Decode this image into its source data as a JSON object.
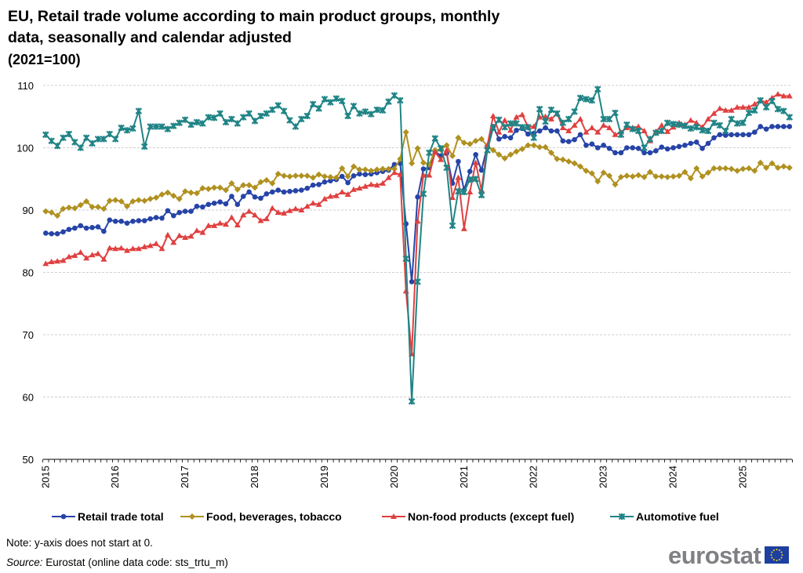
{
  "chart_data": {
    "type": "line",
    "title": "EU, Retail trade volume according to main product groups, monthly data, seasonally and calendar adjusted",
    "title_lines": [
      "EU, Retail trade volume according to main product groups, monthly",
      "data, seasonally and calendar adjusted"
    ],
    "subtitle": "(2021=100)",
    "xlabel": "",
    "ylabel": "",
    "x_start": "2015-01",
    "x_end": "2025-09",
    "x_frequency": "monthly",
    "x_tick_labels": [
      "2015",
      "2016",
      "2017",
      "2018",
      "2019",
      "2020",
      "2021",
      "2022",
      "2023",
      "2024",
      "2025"
    ],
    "ylim": [
      50,
      110
    ],
    "y_ticks": [
      50,
      60,
      70,
      80,
      90,
      100,
      110
    ],
    "grid": "horizontal dashed",
    "legend_placement": "bottom",
    "series": [
      {
        "name": "Retail trade total",
        "color": "#2644A7",
        "marker": "circle",
        "values": [
          86.3,
          86.2,
          86.2,
          86.5,
          86.9,
          87.1,
          87.5,
          87.1,
          87.2,
          87.3,
          86.6,
          88.4,
          88.2,
          88.2,
          87.9,
          88.2,
          88.3,
          88.3,
          88.6,
          88.8,
          88.7,
          89.9,
          89.1,
          89.6,
          89.8,
          89.8,
          90.6,
          90.5,
          90.9,
          91.1,
          91.3,
          91.0,
          92.2,
          90.9,
          92.2,
          92.9,
          92.1,
          91.9,
          92.6,
          92.9,
          93.2,
          92.9,
          93.0,
          93.1,
          93.2,
          93.5,
          94.0,
          94.1,
          94.5,
          94.7,
          94.9,
          95.4,
          94.4,
          95.5,
          95.8,
          95.7,
          95.8,
          96.0,
          96.2,
          96.4,
          97.3,
          97.5,
          87.8,
          78.5,
          92.1,
          96.6,
          96.8,
          99.4,
          98.7,
          99.1,
          94.3,
          97.8,
          93.2,
          96.2,
          98.9,
          96.4,
          100.3,
          103.4,
          101.4,
          101.8,
          101.6,
          102.8,
          103.1,
          102.2,
          102.3,
          102.7,
          103.2,
          102.7,
          102.7,
          101.1,
          101.0,
          101.3,
          102.1,
          100.4,
          100.6,
          100.0,
          100.4,
          99.9,
          99.2,
          99.2,
          100.0,
          100.0,
          99.9,
          99.2,
          99.2,
          99.5,
          100.1,
          99.8,
          100.0,
          100.2,
          100.4,
          100.7,
          100.9,
          99.9,
          100.7,
          101.6,
          102.1,
          102.0,
          102.1,
          102.1,
          102.1,
          102.1,
          102.5,
          103.4,
          103.0,
          103.4,
          103.4,
          103.4,
          103.4
        ]
      },
      {
        "name": "Food, beverages, tobacco",
        "color": "#B09120",
        "marker": "diamond",
        "values": [
          89.8,
          89.6,
          89.1,
          90.2,
          90.4,
          90.3,
          90.8,
          91.4,
          90.5,
          90.5,
          90.2,
          91.5,
          91.6,
          91.4,
          90.6,
          91.4,
          91.6,
          91.5,
          91.8,
          92.0,
          92.5,
          92.8,
          92.3,
          91.8,
          93.0,
          92.8,
          92.7,
          93.5,
          93.4,
          93.6,
          93.6,
          93.2,
          94.3,
          93.3,
          94.0,
          94.0,
          93.6,
          94.5,
          94.8,
          94.3,
          95.8,
          95.5,
          95.4,
          95.5,
          95.5,
          95.5,
          95.2,
          95.7,
          95.4,
          95.3,
          95.2,
          96.7,
          95.4,
          97.0,
          96.5,
          96.5,
          96.3,
          96.5,
          96.6,
          96.6,
          96.6,
          98.2,
          102.5,
          97.5,
          99.9,
          97.6,
          97.3,
          99.6,
          99.7,
          100.4,
          98.7,
          101.6,
          100.8,
          100.6,
          101.1,
          101.4,
          100.3,
          99.6,
          98.9,
          98.3,
          98.9,
          99.4,
          99.8,
          100.4,
          100.4,
          100.1,
          100.1,
          99.2,
          98.2,
          98.1,
          97.8,
          97.5,
          97.0,
          96.3,
          95.9,
          94.6,
          96.0,
          95.5,
          94.1,
          95.3,
          95.5,
          95.4,
          95.6,
          95.3,
          96.1,
          95.4,
          95.4,
          95.3,
          95.4,
          95.5,
          96.1,
          95.1,
          96.7,
          95.4,
          96.0,
          96.7,
          96.7,
          96.7,
          96.6,
          96.3,
          96.6,
          96.7,
          96.3,
          97.6,
          96.8,
          97.5,
          96.8,
          97.0,
          96.8
        ]
      },
      {
        "name": "Non-food products (except fuel)",
        "color": "#E04040",
        "marker": "triangle",
        "values": [
          81.4,
          81.7,
          81.8,
          81.9,
          82.5,
          82.7,
          83.2,
          82.3,
          82.8,
          83.0,
          82.1,
          83.9,
          83.8,
          83.9,
          83.5,
          83.8,
          83.8,
          84.1,
          84.3,
          84.6,
          83.8,
          86.0,
          84.8,
          85.9,
          85.6,
          85.8,
          86.7,
          86.4,
          87.5,
          87.5,
          87.9,
          87.7,
          88.8,
          87.6,
          89.2,
          89.8,
          89.2,
          88.3,
          88.6,
          90.3,
          89.6,
          89.5,
          89.9,
          90.2,
          90.0,
          90.6,
          91.1,
          90.9,
          91.8,
          92.2,
          92.3,
          92.9,
          92.5,
          93.3,
          93.5,
          93.8,
          94.1,
          94.0,
          94.3,
          95.2,
          96.0,
          95.7,
          77.0,
          66.9,
          88.2,
          95.6,
          95.6,
          99.3,
          98.1,
          99.6,
          92.0,
          95.2,
          87.0,
          92.9,
          97.6,
          93.2,
          100.4,
          105.1,
          102.5,
          104.4,
          102.8,
          104.9,
          105.3,
          103.4,
          103.4,
          104.9,
          105.0,
          104.6,
          105.5,
          103.2,
          102.7,
          103.6,
          104.6,
          102.5,
          103.2,
          102.5,
          103.6,
          103.2,
          102.1,
          102.5,
          103.2,
          103.2,
          103.4,
          102.7,
          101.1,
          102.6,
          103.6,
          102.6,
          103.3,
          104.0,
          103.7,
          104.4,
          104.0,
          103.3,
          104.6,
          105.5,
          106.3,
          106.0,
          106.0,
          106.5,
          106.5,
          106.5,
          107.0,
          107.6,
          107.3,
          108.0,
          108.6,
          108.3,
          108.3
        ]
      },
      {
        "name": "Automotive fuel",
        "color": "#208486",
        "marker": "cross",
        "values": [
          102.1,
          101.1,
          100.3,
          101.6,
          102.2,
          100.9,
          100.0,
          101.6,
          100.7,
          101.4,
          101.4,
          102.2,
          101.4,
          103.2,
          102.8,
          103.1,
          105.9,
          100.2,
          103.4,
          103.4,
          103.4,
          103.0,
          103.5,
          104.0,
          104.5,
          103.7,
          104.1,
          103.9,
          104.9,
          104.8,
          105.5,
          104.1,
          104.6,
          103.9,
          104.9,
          105.5,
          104.3,
          105.1,
          105.5,
          106.1,
          106.8,
          105.9,
          104.4,
          103.4,
          104.6,
          105.1,
          107.0,
          106.3,
          107.8,
          107.3,
          107.9,
          107.5,
          105.1,
          106.7,
          105.5,
          105.8,
          105.4,
          106.1,
          106.0,
          107.4,
          108.4,
          107.6,
          82.2,
          59.3,
          78.5,
          92.6,
          99.2,
          101.5,
          99.9,
          96.8,
          87.5,
          93.0,
          92.9,
          94.9,
          95.0,
          92.4,
          99.6,
          103.2,
          104.5,
          103.3,
          103.9,
          103.9,
          103.3,
          103.3,
          101.6,
          106.2,
          104.2,
          106.1,
          105.5,
          104.0,
          104.6,
          105.8,
          108.0,
          107.8,
          107.6,
          109.4,
          104.6,
          104.6,
          105.6,
          102.1,
          103.7,
          103.0,
          102.7,
          100.0,
          101.4,
          102.4,
          102.7,
          104.0,
          103.8,
          103.7,
          103.5,
          103.1,
          103.3,
          102.8,
          102.7,
          104.0,
          103.6,
          102.7,
          104.6,
          103.9,
          104.0,
          105.6,
          106.0,
          107.6,
          106.5,
          107.5,
          106.2,
          105.9,
          104.9
        ]
      }
    ]
  },
  "footer": {
    "note": "Note: y-axis does not start at 0.",
    "source_label": "Source:",
    "source_text": " Eurostat (online data code: sts_trtu_m)",
    "logo_text": "eurostat"
  }
}
